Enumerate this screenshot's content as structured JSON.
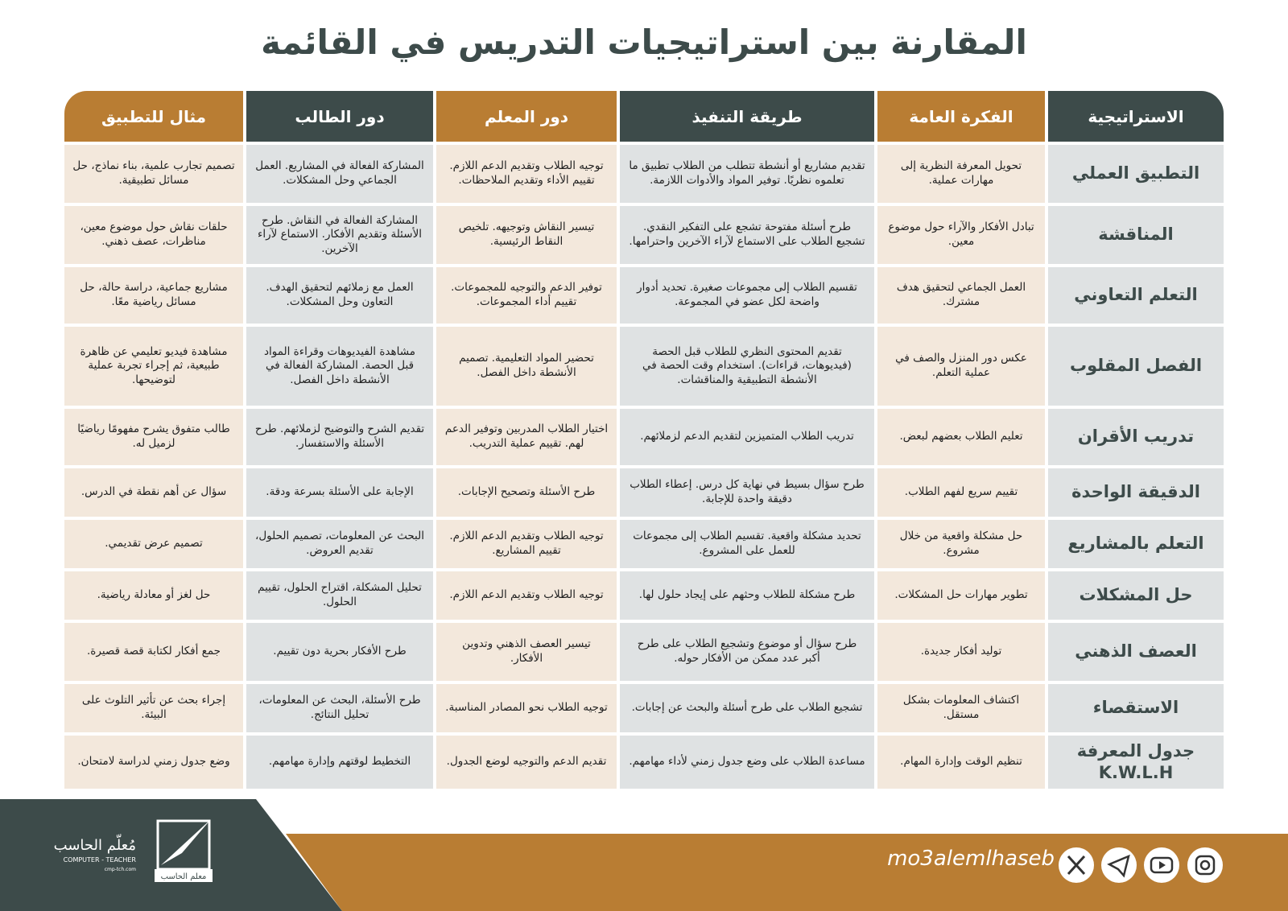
{
  "title": "المقارنة بين استراتيجيات التدريس في القائمة",
  "table": {
    "headers": [
      "الاستراتيجية",
      "الفكرة العامة",
      "طريقة التنفيذ",
      "دور المعلم",
      "دور الطالب",
      "مثال للتطبيق"
    ],
    "rows": [
      [
        "التطبيق العملي",
        "تحويل المعرفة النظرية إلى مهارات عملية.",
        "تقديم مشاريع أو أنشطة تتطلب من الطلاب تطبيق ما تعلموه نظريًا. توفير المواد والأدوات اللازمة.",
        "توجيه الطلاب وتقديم الدعم اللازم. تقييم الأداء وتقديم الملاحظات.",
        "المشاركة الفعالة في المشاريع. العمل الجماعي وحل المشكلات.",
        "تصميم تجارب علمية، بناء نماذج، حل مسائل تطبيقية."
      ],
      [
        "المناقشة",
        "تبادل الأفكار والآراء حول موضوع معين.",
        "طرح أسئلة مفتوحة تشجع على التفكير النقدي. تشجيع الطلاب على الاستماع لآراء الآخرين واحترامها.",
        "تيسير النقاش وتوجيهه. تلخيص النقاط الرئيسية.",
        "المشاركة الفعالة في النقاش. طرح الأسئلة وتقديم الأفكار. الاستماع لآراء الآخرين.",
        "حلقات نقاش حول موضوع معين، مناظرات، عصف ذهني."
      ],
      [
        "التعلم التعاوني",
        "العمل الجماعي لتحقيق هدف مشترك.",
        "تقسيم الطلاب إلى مجموعات صغيرة. تحديد أدوار واضحة لكل عضو في المجموعة.",
        "توفير الدعم والتوجيه للمجموعات. تقييم أداء المجموعات.",
        "العمل مع زملائهم لتحقيق الهدف. التعاون وحل المشكلات.",
        "مشاريع جماعية، دراسة حالة، حل مسائل رياضية معًا."
      ],
      [
        "الفصل المقلوب",
        "عكس دور المنزل والصف في عملية التعلم.",
        "تقديم المحتوى النظري للطلاب قبل الحصة (فيديوهات، قراءات). استخدام وقت الحصة في الأنشطة التطبيقية والمناقشات.",
        "تحضير المواد التعليمية. تصميم الأنشطة داخل الفصل.",
        "مشاهدة الفيديوهات وقراءة المواد قبل الحصة. المشاركة الفعالة في الأنشطة داخل الفصل.",
        "مشاهدة فيديو تعليمي عن ظاهرة طبيعية، ثم إجراء تجربة عملية لتوضيحها."
      ],
      [
        "تدريب الأقران",
        "تعليم الطلاب بعضهم لبعض.",
        "تدريب الطلاب المتميزين لتقديم الدعم لزملائهم.",
        "اختيار الطلاب المدربين وتوفير الدعم لهم. تقييم عملية التدريب.",
        "تقديم الشرح والتوضيح لزملائهم. طرح الأسئلة والاستفسار.",
        "طالب متفوق يشرح مفهومًا رياضيًا لزميل له."
      ],
      [
        "الدقيقة الواحدة",
        "تقييم سريع لفهم الطلاب.",
        "طرح سؤال بسيط في نهاية كل درس. إعطاء الطلاب دقيقة واحدة للإجابة.",
        "طرح الأسئلة وتصحيح الإجابات.",
        "الإجابة على الأسئلة بسرعة ودقة.",
        "سؤال عن أهم نقطة في الدرس."
      ],
      [
        "التعلم بالمشاريع",
        "حل مشكلة واقعية من خلال مشروع.",
        "تحديد مشكلة واقعية. تقسيم الطلاب إلى مجموعات للعمل على المشروع.",
        "توجيه الطلاب وتقديم الدعم اللازم. تقييم المشاريع.",
        "البحث عن المعلومات، تصميم الحلول، تقديم العروض.",
        "تصميم عرض تقديمي."
      ],
      [
        "حل المشكلات",
        "تطوير مهارات حل المشكلات.",
        "طرح مشكلة للطلاب وحثهم على إيجاد حلول لها.",
        "توجيه الطلاب وتقديم الدعم اللازم.",
        "تحليل المشكلة، اقتراح الحلول، تقييم الحلول.",
        "حل لغز أو معادلة رياضية."
      ],
      [
        "العصف الذهني",
        "توليد أفكار جديدة.",
        "طرح سؤال أو موضوع وتشجيع الطلاب على طرح أكبر عدد ممكن من الأفكار حوله.",
        "تيسير العصف الذهني وتدوين الأفكار.",
        "طرح الأفكار بحرية دون تقييم.",
        "جمع أفكار لكتابة قصة قصيرة."
      ],
      [
        "الاستقصاء",
        "اكتشاف المعلومات بشكل مستقل.",
        "تشجيع الطلاب على طرح أسئلة والبحث عن إجابات.",
        "توجيه الطلاب نحو المصادر المناسبة.",
        "طرح الأسئلة، البحث عن المعلومات، تحليل النتائج.",
        "إجراء بحث عن تأثير التلوث على البيئة."
      ],
      [
        "جدول المعرفة K.W.L.H",
        "تنظيم الوقت وإدارة المهام.",
        "مساعدة الطلاب على وضع جدول زمني لأداء مهامهم.",
        "تقديم الدعم والتوجيه لوضع الجدول.",
        "التخطيط لوقتهم وإدارة مهامهم.",
        "وضع جدول زمني لدراسة لامتحان."
      ]
    ]
  },
  "footer": {
    "brand_ar": "مُعلّم الحاسب",
    "brand_en": "COMPUTER - TEACHER",
    "website": "cmp-tch.com",
    "logo_label": "معلم الحاسب",
    "handle": "mo3alemlhaseb"
  }
}
